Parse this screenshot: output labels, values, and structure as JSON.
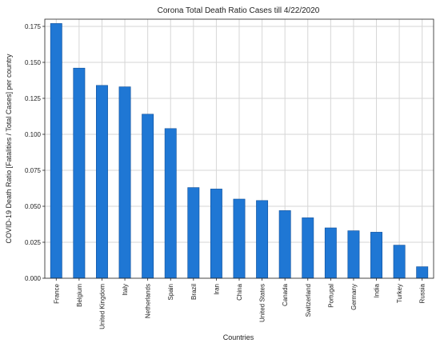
{
  "chart_data": {
    "type": "bar",
    "title": "Corona Total Death Ratio Cases till 4/22/2020",
    "xlabel": "Countries",
    "ylabel": "COVID-19 Death Ratio [Fatalities / Total Cases] per country",
    "categories": [
      "France",
      "Belgium",
      "United Kingdom",
      "Italy",
      "Netherlands",
      "Spain",
      "Brazil",
      "Iran",
      "China",
      "United States",
      "Canada",
      "Switzerland",
      "Portugal",
      "Germany",
      "India",
      "Turkey",
      "Russia"
    ],
    "values": [
      0.177,
      0.146,
      0.134,
      0.133,
      0.114,
      0.104,
      0.063,
      0.062,
      0.055,
      0.054,
      0.047,
      0.042,
      0.035,
      0.033,
      0.032,
      0.023,
      0.008
    ],
    "ylim": [
      0,
      0.18
    ],
    "yticks": [
      0.0,
      0.025,
      0.05,
      0.075,
      0.1,
      0.125,
      0.15,
      0.175
    ],
    "ytick_labels": [
      "0.000",
      "0.025",
      "0.050",
      "0.075",
      "0.100",
      "0.125",
      "0.150",
      "0.175"
    ],
    "grid": true,
    "bar_color": "#1f77d4",
    "bar_edge_color": "#0f4f9a"
  }
}
